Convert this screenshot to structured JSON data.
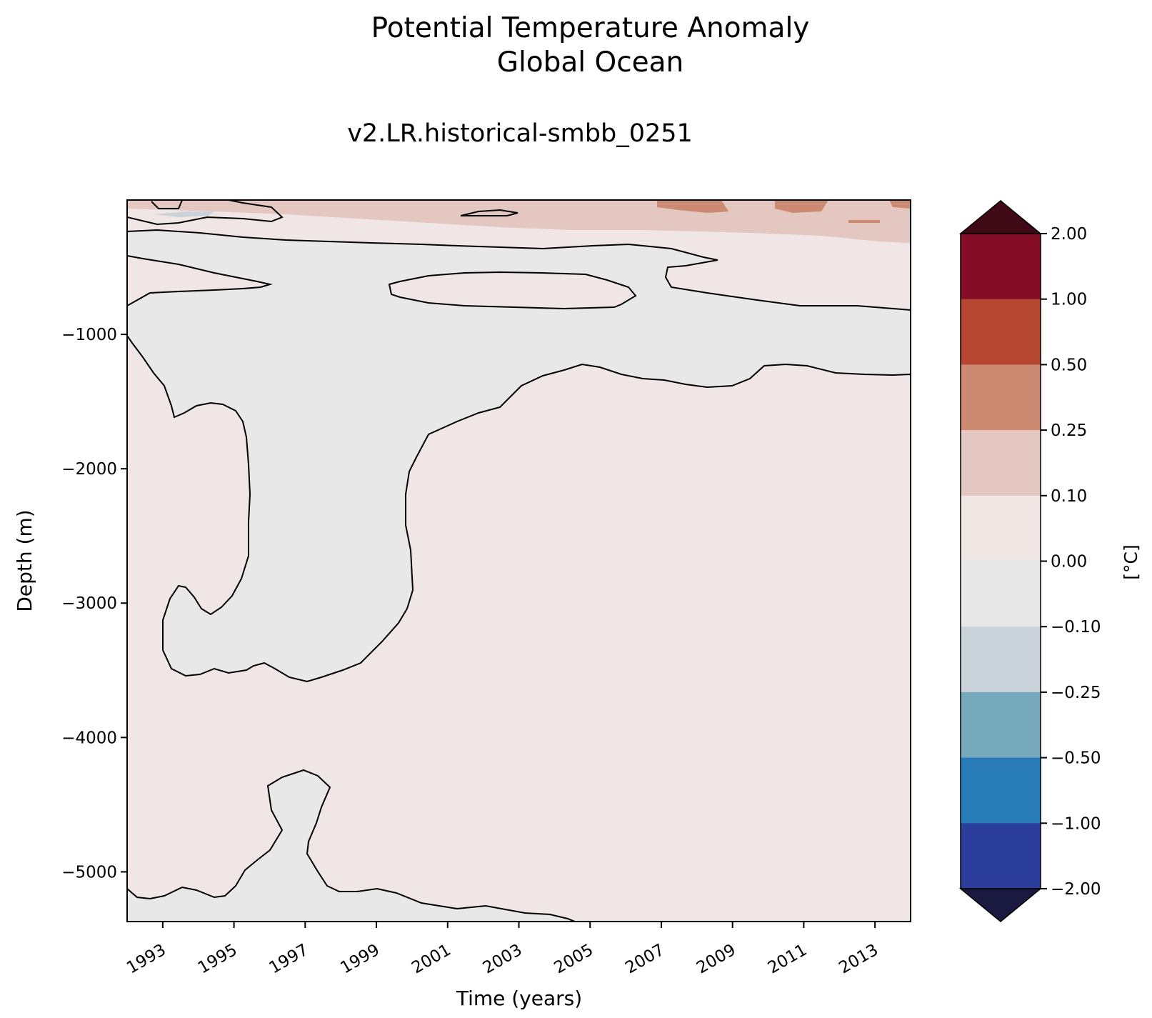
{
  "chart_data": {
    "type": "heatmap",
    "title": "Potential Temperature Anomaly",
    "title_line2": "Global Ocean",
    "subtitle": "v2.LR.historical-smbb_0251",
    "xlabel": "Time (years)",
    "ylabel": "Depth (m)",
    "xlim": [
      1992.0,
      2014.0
    ],
    "ylim": [
      -5370,
      0
    ],
    "x_ticks": [
      "1993",
      "1995",
      "1997",
      "1999",
      "2001",
      "2003",
      "2005",
      "2007",
      "2009",
      "2011",
      "2013"
    ],
    "y_ticks": [
      "−1000",
      "−2000",
      "−3000",
      "−4000",
      "−5000"
    ],
    "x_tick_values": [
      1993,
      1995,
      1997,
      1999,
      2001,
      2003,
      2005,
      2007,
      2009,
      2011,
      2013
    ],
    "y_tick_values": [
      -1000,
      -2000,
      -3000,
      -4000,
      -5000
    ],
    "colorbar": {
      "label": "[°C]",
      "levels": [
        "2.00",
        "1.00",
        "0.50",
        "0.25",
        "0.10",
        "0.00",
        "−0.10",
        "−0.25",
        "−0.50",
        "−1.00",
        "−2.00"
      ],
      "colors_top_to_bottom": [
        "#850d26",
        "#b54630",
        "#cd8a72",
        "#e4c7c1",
        "#f0e7e5",
        "#e9e8e9",
        "#c9d3d9",
        "#77a9bd",
        "#277bb7",
        "#2c3e9b"
      ],
      "extend_max_color": "#3f0915",
      "extend_min_color": "#1a1a40"
    },
    "background_color": "#efe6e5",
    "negative_region_color": "#e9e8e9"
  }
}
